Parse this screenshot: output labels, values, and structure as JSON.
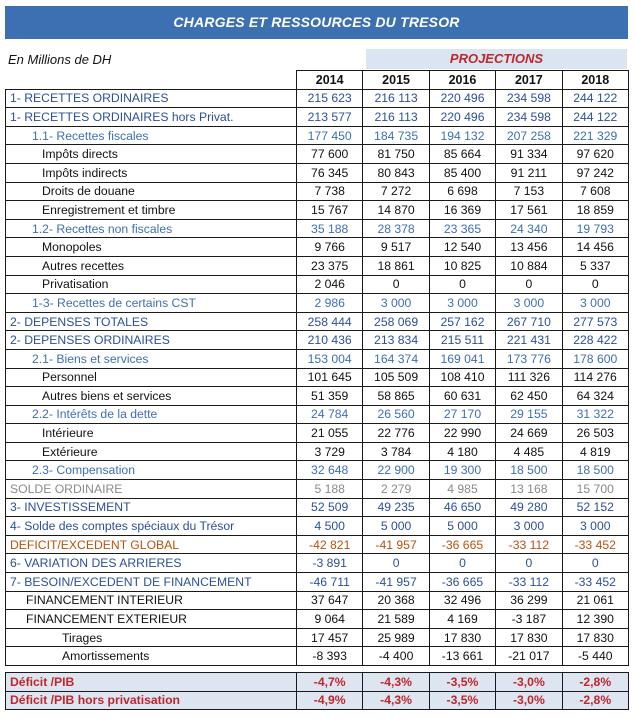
{
  "title": "CHARGES ET RESSOURCES DU TRESOR",
  "unit": "En Millions de DH",
  "projections_label": "PROJECTIONS",
  "years": [
    "2014",
    "2015",
    "2016",
    "2017",
    "2018"
  ],
  "colors": {
    "header_blue": "#3d70b2",
    "projection_bg": "#dbe4f1",
    "red": "#c0272d",
    "orange": "#b8510e",
    "grey": "#8a8a8a"
  },
  "rows": [
    {
      "label": "1- RECETTES ORDINAIRES",
      "values": [
        "215 623",
        "216 113",
        "220 496",
        "234 598",
        "244 122"
      ]
    },
    {
      "label": "1- RECETTES ORDINAIRES hors Privat.",
      "values": [
        "213 577",
        "216 113",
        "220 496",
        "234 598",
        "244 122"
      ]
    },
    {
      "label": "1.1- Recettes fiscales",
      "values": [
        "177 450",
        "184 735",
        "194 132",
        "207 258",
        "221 329"
      ]
    },
    {
      "label": "Impôts directs",
      "values": [
        "77 600",
        "81 750",
        "85 664",
        "91 334",
        "97 620"
      ]
    },
    {
      "label": "Impôts indirects",
      "values": [
        "76 345",
        "80 843",
        "85 400",
        "91 211",
        "97 242"
      ]
    },
    {
      "label": "Droits de douane",
      "values": [
        "7 738",
        "7 272",
        "6 698",
        "7 153",
        "7 608"
      ]
    },
    {
      "label": "Enregistrement et timbre",
      "values": [
        "15 767",
        "14 870",
        "16 369",
        "17 561",
        "18 859"
      ]
    },
    {
      "label": "1.2- Recettes non fiscales",
      "values": [
        "35 188",
        "28 378",
        "23 365",
        "24 340",
        "19 793"
      ]
    },
    {
      "label": "Monopoles",
      "values": [
        "9 766",
        "9 517",
        "12 540",
        "13 456",
        "14 456"
      ]
    },
    {
      "label": "Autres recettes",
      "values": [
        "23 375",
        "18 861",
        "10 825",
        "10 884",
        "5 337"
      ]
    },
    {
      "label": "Privatisation",
      "values": [
        "2 046",
        "0",
        "0",
        "0",
        "0"
      ]
    },
    {
      "label": "1-3- Recettes de certains CST",
      "values": [
        "2 986",
        "3 000",
        "3 000",
        "3 000",
        "3 000"
      ]
    },
    {
      "label": "2- DEPENSES TOTALES",
      "values": [
        "258 444",
        "258 069",
        "257 162",
        "267 710",
        "277 573"
      ]
    },
    {
      "label": "2- DEPENSES ORDINAIRES",
      "values": [
        "210 436",
        "213 834",
        "215 511",
        "221 431",
        "228 422"
      ]
    },
    {
      "label": "2.1- Biens et services",
      "values": [
        "153 004",
        "164 374",
        "169 041",
        "173 776",
        "178 600"
      ]
    },
    {
      "label": "Personnel",
      "values": [
        "101 645",
        "105 509",
        "108 410",
        "111 326",
        "114 276"
      ]
    },
    {
      "label": "Autres biens et services",
      "values": [
        "51 359",
        "58 865",
        "60 631",
        "62 450",
        "64 324"
      ]
    },
    {
      "label": "2.2- Intérêts de la dette",
      "values": [
        "24 784",
        "26 560",
        "27 170",
        "29 155",
        "31 322"
      ]
    },
    {
      "label": "Intérieure",
      "values": [
        "21 055",
        "22 776",
        "22 990",
        "24 669",
        "26 503"
      ]
    },
    {
      "label": "Extérieure",
      "values": [
        "3 729",
        "3 784",
        "4 180",
        "4 485",
        "4 819"
      ]
    },
    {
      "label": "2.3- Compensation",
      "values": [
        "32 648",
        "22 900",
        "19 300",
        "18 500",
        "18 500"
      ]
    },
    {
      "label": "SOLDE ORDINAIRE",
      "values": [
        "5 188",
        "2 279",
        "4 985",
        "13 168",
        "15 700"
      ]
    },
    {
      "label": "3- INVESTISSEMENT",
      "values": [
        "52 509",
        "49 235",
        "46 650",
        "49 280",
        "52 152"
      ]
    },
    {
      "label": "4- Solde des comptes spéciaux du Trésor",
      "values": [
        "4 500",
        "5 000",
        "5 000",
        "3 000",
        "3 000"
      ]
    },
    {
      "label": "DEFICIT/EXCEDENT GLOBAL",
      "values": [
        "-42 821",
        "-41 957",
        "-36 665",
        "-33 112",
        "-33 452"
      ]
    },
    {
      "label": "6- VARIATION DES ARRIERES",
      "values": [
        "-3 891",
        "0",
        "0",
        "0",
        "0"
      ]
    },
    {
      "label": "7- BESOIN/EXCEDENT DE FINANCEMENT",
      "values": [
        "-46 711",
        "-41 957",
        "-36 665",
        "-33 112",
        "-33 452"
      ]
    },
    {
      "label": "FINANCEMENT INTERIEUR",
      "values": [
        "37 647",
        "20 368",
        "32 496",
        "36 299",
        "21 061"
      ]
    },
    {
      "label": "FINANCEMENT EXTERIEUR",
      "values": [
        "9 064",
        "21 589",
        "4 169",
        "-3 187",
        "12 390"
      ]
    },
    {
      "label": "Tirages",
      "values": [
        "17 457",
        "25 989",
        "17 830",
        "17 830",
        "17 830"
      ]
    },
    {
      "label": "Amortissements",
      "values": [
        "-8 393",
        "-4 400",
        "-13 661",
        "-21 017",
        "-5 440"
      ]
    },
    {
      "label": "Déficit /PIB",
      "values": [
        "-4,7%",
        "-4,3%",
        "-3,5%",
        "-3,0%",
        "-2,8%"
      ]
    },
    {
      "label": "Déficit /PIB hors privatisation",
      "values": [
        "-4,9%",
        "-4,3%",
        "-3,5%",
        "-3,0%",
        "-2,8%"
      ]
    }
  ]
}
